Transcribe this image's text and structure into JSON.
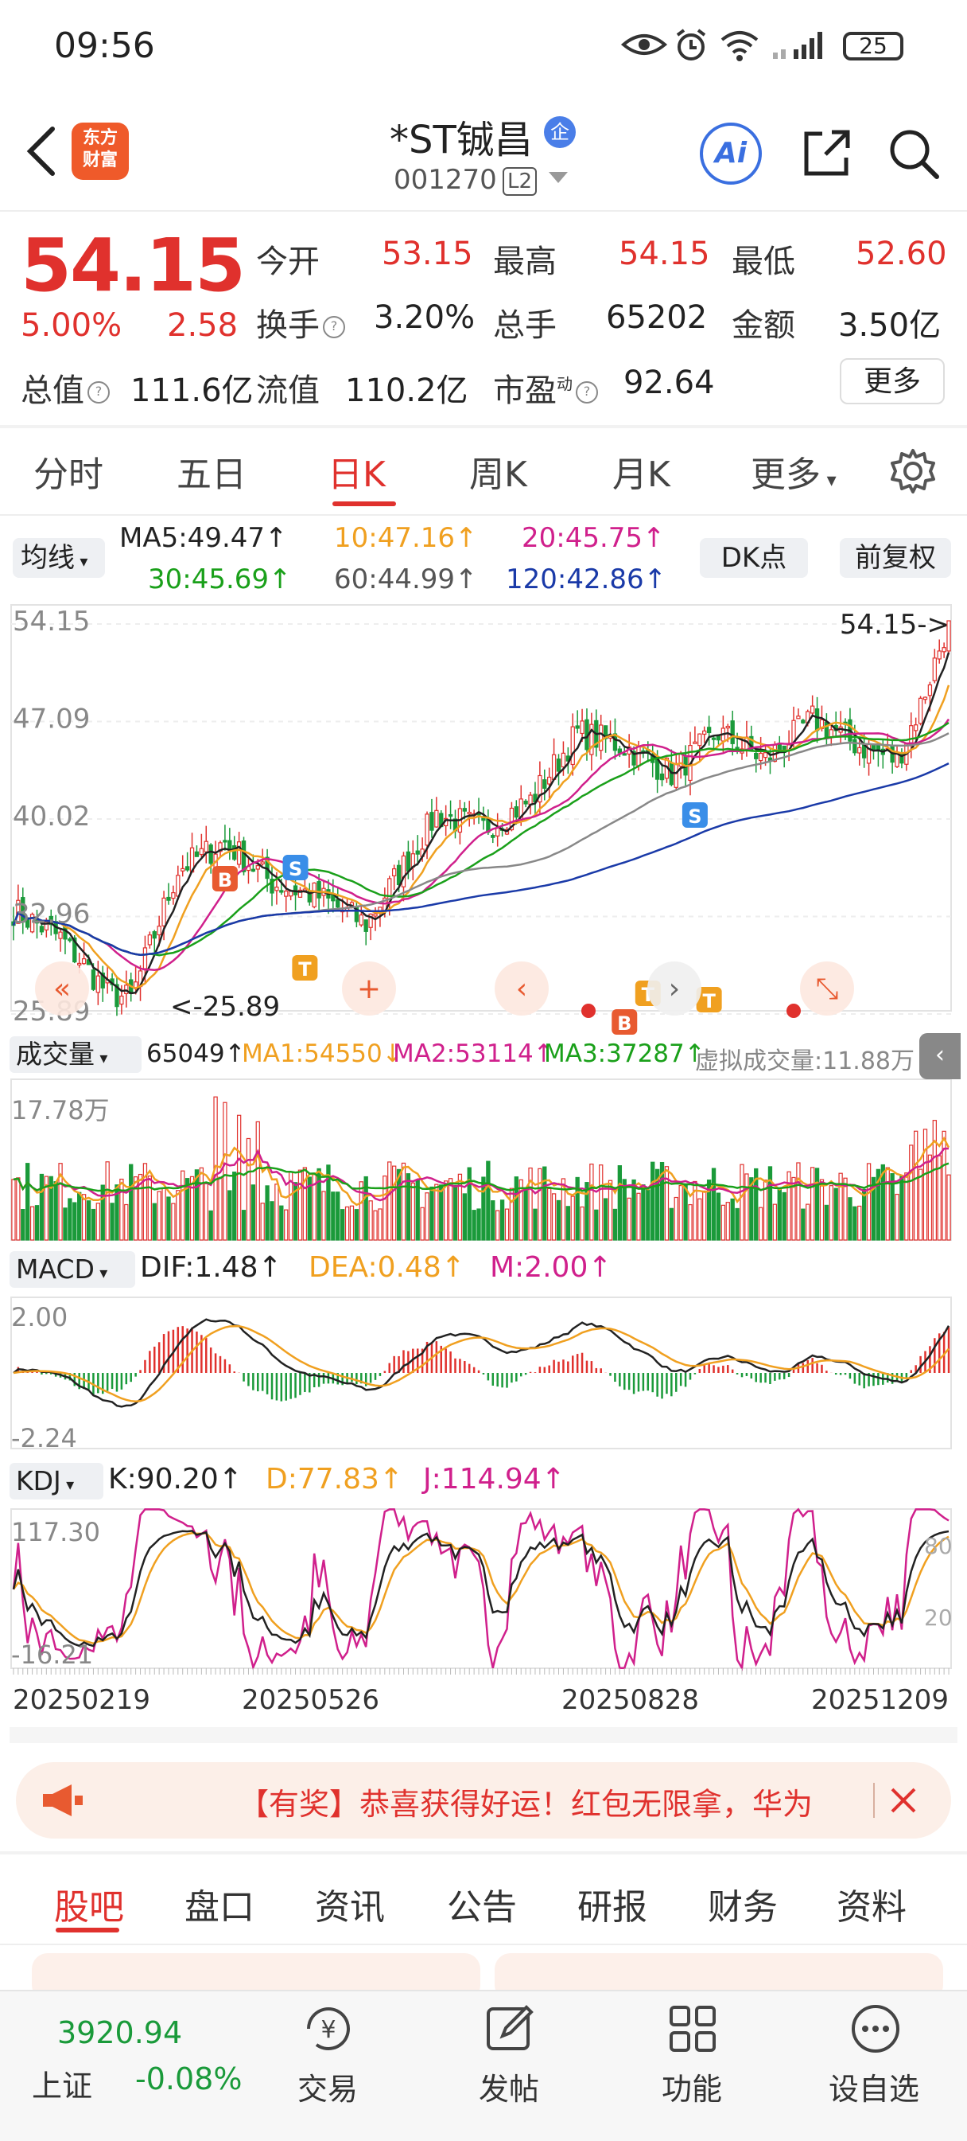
{
  "status_bar": {
    "time": "09:56",
    "battery": "25"
  },
  "header": {
    "stock_name": "*ST铖昌",
    "badge": "企",
    "stock_code": "001270",
    "level": "L2",
    "logo_text_1": "东方",
    "logo_text_2": "财富",
    "ai_label": "Ai"
  },
  "quote": {
    "price": "54.15",
    "pct_change": "5.00%",
    "change": "2.58",
    "open_label": "今开",
    "open": "53.15",
    "high_label": "最高",
    "high": "54.15",
    "low_label": "最低",
    "low": "52.60",
    "turnover_label": "换手",
    "turnover": "3.20%",
    "volume_label": "总手",
    "volume": "65202",
    "amount_label": "金额",
    "amount": "3.50亿",
    "mktcap_label": "总值",
    "mktcap": "111.6亿",
    "float_label": "流值",
    "float_cap": "110.2亿",
    "pe_label": "市盈",
    "pe_sup": "动",
    "pe": "92.64",
    "more_label": "更多"
  },
  "tabs": [
    "分时",
    "五日",
    "日K",
    "周K",
    "月K",
    "更多"
  ],
  "ma_legend": {
    "select_label": "均线",
    "ma5": "MA5:49.47↑",
    "ma10": "10:47.16↑",
    "ma20": "20:45.75↑",
    "ma30": "30:45.69↑",
    "ma60": "60:44.99↑",
    "ma120": "120:42.86↑",
    "dk_label": "DK点",
    "adjust_label": "前复权"
  },
  "kline": {
    "y_labels": [
      "54.15",
      "47.09",
      "40.02",
      "32.96",
      "25.89"
    ],
    "last_marker": "54.15->",
    "low_marker": "<-25.89",
    "signals": [
      "B",
      "S",
      "T",
      "S",
      "T",
      "B",
      "T"
    ]
  },
  "volume_legend": {
    "select_label": "成交量",
    "vol": "65049↑",
    "ma1": "MA1:54550↓",
    "ma2": "MA2:53114↑",
    "ma3": "MA3:37287↑",
    "virtual": "虚拟成交量:11.88万",
    "axis_max": "17.78万"
  },
  "macd_legend": {
    "select_label": "MACD",
    "dif": "DIF:1.48↑",
    "dea": "DEA:0.48↑",
    "m": "M:2.00↑",
    "axis_top": "2.00",
    "axis_bottom": "-2.24"
  },
  "kdj_legend": {
    "select_label": "KDJ",
    "k": "K:90.20↑",
    "d": "D:77.83↑",
    "j": "J:114.94↑",
    "axis_top": "117.30",
    "axis_bottom": "-16.21",
    "right_top": "80",
    "right_bottom": "20"
  },
  "dates": [
    "20250219",
    "20250526",
    "20250828",
    "20251209"
  ],
  "notice": {
    "text": "【有奖】恭喜获得好运！红包无限拿，华为"
  },
  "bottom_tabs": [
    "股吧",
    "盘口",
    "资讯",
    "公告",
    "研报",
    "财务",
    "资料"
  ],
  "bottom_nav": {
    "index_value": "3920.94",
    "index_name": "上证",
    "index_change": "-0.08%",
    "trade_label": "交易",
    "post_label": "发帖",
    "func_label": "功能",
    "watch_label": "设自选"
  },
  "colors": {
    "up": "#e0312d",
    "down": "#1a9a3a",
    "ma5": "#222222",
    "ma10": "#f0a020",
    "ma20": "#d0208c",
    "ma30": "#1aa01a",
    "ma60": "#888888",
    "ma120": "#1a3aa8"
  },
  "chart_data": {
    "type": "line",
    "title": "",
    "x": [
      "20250219",
      "20250526",
      "20250828",
      "20251209"
    ],
    "ylim": [
      25.89,
      54.15
    ],
    "series": [
      {
        "name": "MA5",
        "last": 49.47
      },
      {
        "name": "MA10",
        "last": 47.16
      },
      {
        "name": "MA20",
        "last": 45.75
      },
      {
        "name": "MA30",
        "last": 45.69
      },
      {
        "name": "MA60",
        "last": 44.99
      },
      {
        "name": "MA120",
        "last": 42.86
      }
    ],
    "last_close": 54.15,
    "period_low": 25.89
  }
}
